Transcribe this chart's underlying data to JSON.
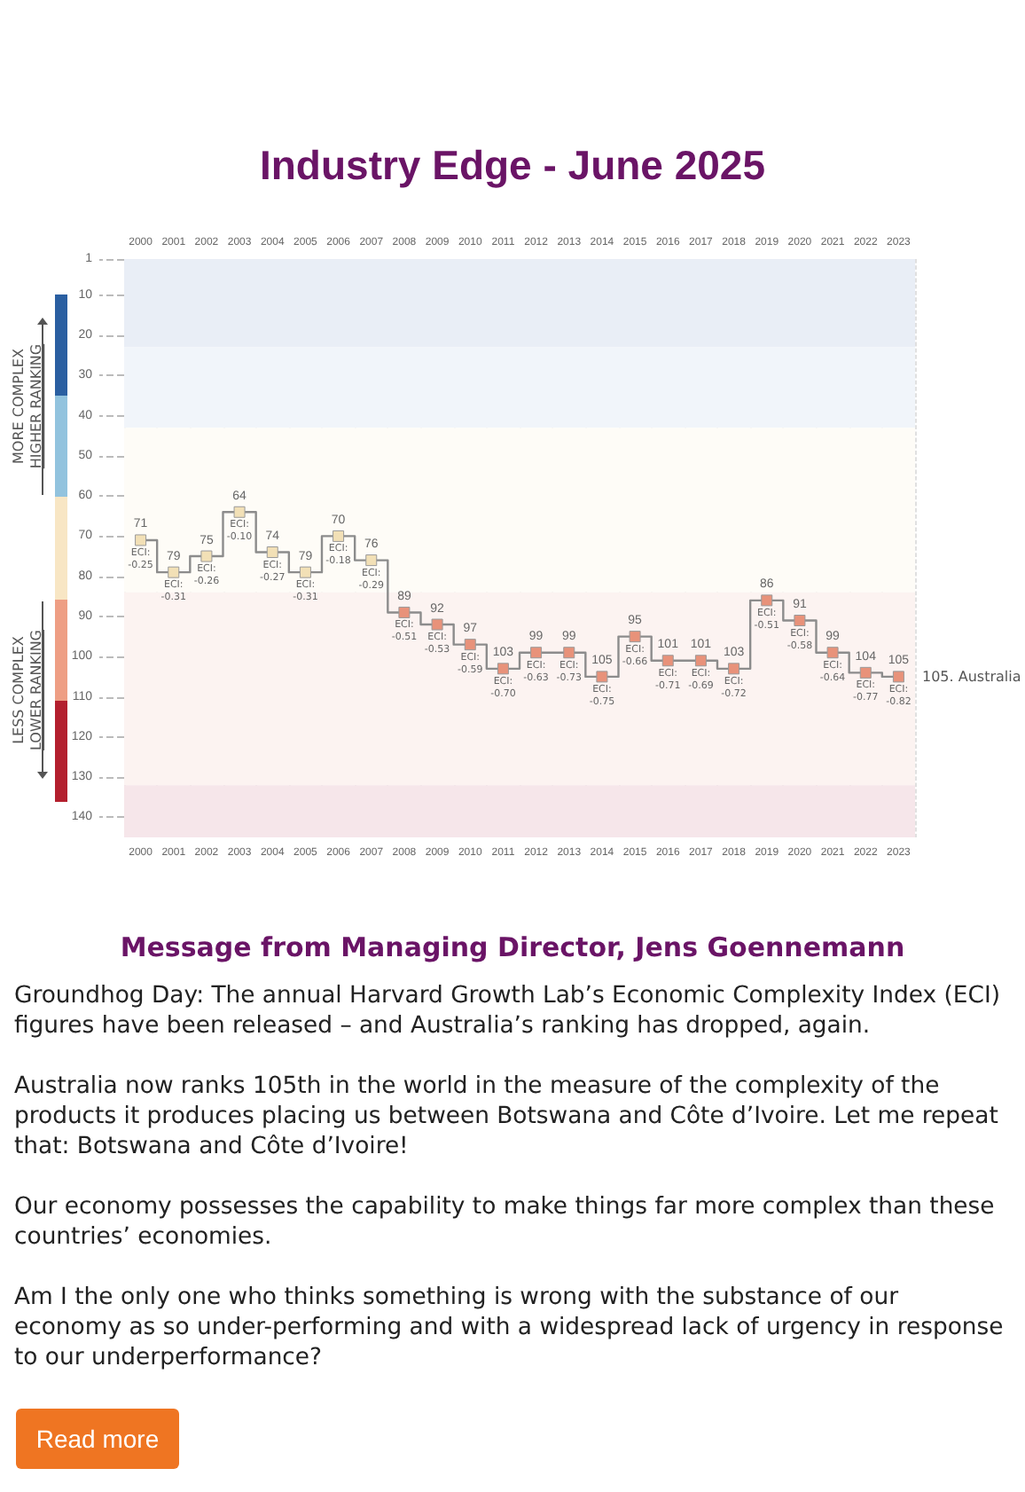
{
  "chart_data": {
    "type": "step",
    "title": "Industry Edge - June 2025",
    "categories": [
      "2000",
      "2001",
      "2002",
      "2003",
      "2004",
      "2005",
      "2006",
      "2007",
      "2008",
      "2009",
      "2010",
      "2011",
      "2012",
      "2013",
      "2014",
      "2015",
      "2016",
      "2017",
      "2018",
      "2019",
      "2020",
      "2021",
      "2022",
      "2023"
    ],
    "series": [
      {
        "color": "#8c8c8c",
        "colors": [
          "#f2e0b6",
          "#f2e0b6",
          "#f2e0b6",
          "#f2e0b6",
          "#f2e0b6",
          "#f2e0b6",
          "#f2e0b6",
          "#f2e0b6",
          "#e8927a",
          "#e8927a",
          "#e8927a",
          "#e8927a",
          "#e8927a",
          "#e8927a",
          "#e8927a",
          "#e8927a",
          "#e8927a",
          "#e8927a",
          "#e8927a",
          "#e8927a",
          "#e8927a",
          "#e8927a",
          "#e8927a",
          "#e8927a"
        ],
        "values": [
          71,
          79,
          75,
          64,
          74,
          79,
          70,
          76,
          89,
          92,
          97,
          103,
          99,
          99,
          105,
          95,
          101,
          101,
          103,
          86,
          91,
          99,
          104,
          105
        ],
        "value_labels": [
          "71",
          "79",
          "75",
          "64",
          "74",
          "79",
          "70",
          "76",
          "89",
          "92",
          "97",
          "103",
          "99",
          "99",
          "105",
          "95",
          "101",
          "101",
          "103",
          "86",
          "91",
          "99",
          "104",
          "105"
        ]
      }
    ],
    "ylim": [
      145,
      1
    ],
    "yticks": [
      1,
      10,
      20,
      30,
      40,
      50,
      60,
      70,
      80,
      90,
      100,
      110,
      120,
      130,
      140
    ],
    "grid": "x",
    "marker": "square",
    "bands": [
      {
        "axis": "y",
        "from": 1,
        "to": 23,
        "color": "#e9eef6"
      },
      {
        "axis": "y",
        "from": 23,
        "to": 43,
        "color": "#f1f5fa"
      },
      {
        "axis": "y",
        "from": 43,
        "to": 84,
        "color": "#fefcf7"
      },
      {
        "axis": "y",
        "from": 84,
        "to": 132,
        "color": "#fcf3f1"
      },
      {
        "axis": "y",
        "from": 132,
        "to": 145,
        "color": "#f6e6ea"
      }
    ],
    "annotations": [
      {
        "text": "ECI: -0.25",
        "x": "2000",
        "y": 71
      },
      {
        "text": "ECI: -0.31",
        "x": "2001",
        "y": 79
      },
      {
        "text": "ECI: -0.26",
        "x": "2002",
        "y": 75
      },
      {
        "text": "ECI: -0.10",
        "x": "2003",
        "y": 64
      },
      {
        "text": "ECI: -0.27",
        "x": "2004",
        "y": 74
      },
      {
        "text": "ECI: -0.31",
        "x": "2005",
        "y": 79
      },
      {
        "text": "ECI: -0.18",
        "x": "2006",
        "y": 70
      },
      {
        "text": "ECI: -0.29",
        "x": "2007",
        "y": 76
      },
      {
        "text": "ECI: -0.51",
        "x": "2008",
        "y": 89
      },
      {
        "text": "ECI: -0.53",
        "x": "2009",
        "y": 92
      },
      {
        "text": "ECI: -0.59",
        "x": "2010",
        "y": 97
      },
      {
        "text": "ECI: -0.70",
        "x": "2011",
        "y": 103
      },
      {
        "text": "ECI: -0.63",
        "x": "2012",
        "y": 99
      },
      {
        "text": "ECI: -0.73",
        "x": "2013",
        "y": 99
      },
      {
        "text": "ECI: -0.75",
        "x": "2014",
        "y": 105
      },
      {
        "text": "ECI: -0.66",
        "x": "2015",
        "y": 95
      },
      {
        "text": "ECI: -0.71",
        "x": "2016",
        "y": 101
      },
      {
        "text": "ECI: -0.69",
        "x": "2017",
        "y": 101
      },
      {
        "text": "ECI: -0.72",
        "x": "2018",
        "y": 103
      },
      {
        "text": "ECI: -0.51",
        "x": "2019",
        "y": 86
      },
      {
        "text": "ECI: -0.58",
        "x": "2020",
        "y": 91
      },
      {
        "text": "ECI: -0.64",
        "x": "2021",
        "y": 99
      },
      {
        "text": "ECI: -0.77",
        "x": "2022",
        "y": 104
      },
      {
        "text": "ECI: -0.82",
        "x": "2023",
        "y": 105
      },
      {
        "text": "105. Australia",
        "x": "2023",
        "y": 105
      },
      "MORE COMPLEX",
      "HIGHER RANKING",
      "LESS COMPLEX",
      "LOWER RANKING",
      "Message from Managing Director, Jens Goennemann",
      "Groundhog Day: The annual Harvard Growth Lab’s Economic Complexity Index (ECI) figures have been released – and Australia’s ranking has dropped, again.",
      "Australia now ranks 105th in the world in the measure of the complexity of the products it produces placing us between Botswana and Côte d’Ivoire. Let me repeat that: Botswana and Côte d’Ivoire!",
      "Our economy possesses the capability to make things far more complex than these countries’ economies.",
      "Am I the only one who thinks something is wrong with the substance of our economy as so under-performing and with a widespread lack of urgency in response to our underperformance?",
      "Read more"
    ]
  }
}
